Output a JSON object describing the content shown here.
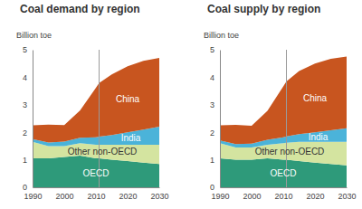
{
  "chart_data": [
    {
      "type": "area",
      "title": "Coal demand by region",
      "y_label": "Billion toe",
      "stacked": true,
      "x": [
        1990,
        1995,
        2000,
        2005,
        2010,
        2011,
        2015,
        2020,
        2025,
        2030
      ],
      "xlim": [
        1990,
        2030
      ],
      "xticks": [
        1990,
        2000,
        2010,
        2020,
        2030
      ],
      "ylim": [
        0,
        5
      ],
      "yticks": [
        0,
        1,
        2,
        3,
        4,
        5
      ],
      "vline_x": 2011,
      "series": [
        {
          "name": "OECD",
          "color": "#2e9a7a",
          "values": [
            1.05,
            1.05,
            1.1,
            1.15,
            1.05,
            1.05,
            1.0,
            0.95,
            0.9,
            0.85
          ]
        },
        {
          "name": "Other non-OECD",
          "color": "#d4e4a0",
          "values": [
            0.6,
            0.45,
            0.4,
            0.45,
            0.5,
            0.5,
            0.55,
            0.6,
            0.65,
            0.7
          ]
        },
        {
          "name": "India",
          "color": "#4bb3d9",
          "values": [
            0.1,
            0.13,
            0.16,
            0.2,
            0.27,
            0.29,
            0.35,
            0.45,
            0.55,
            0.65
          ]
        },
        {
          "name": "China",
          "color": "#c8551f",
          "values": [
            0.5,
            0.65,
            0.6,
            1.0,
            1.8,
            1.95,
            2.2,
            2.4,
            2.5,
            2.5
          ]
        }
      ]
    },
    {
      "type": "area",
      "title": "Coal supply by region",
      "y_label": "Billion toe",
      "stacked": true,
      "x": [
        1990,
        1995,
        2000,
        2005,
        2010,
        2011,
        2015,
        2020,
        2025,
        2030
      ],
      "xlim": [
        1990,
        2030
      ],
      "xticks": [
        1990,
        2000,
        2010,
        2020,
        2030
      ],
      "ylim": [
        0,
        5
      ],
      "yticks": [
        0,
        1,
        2,
        3,
        4,
        5
      ],
      "vline_x": 2011,
      "series": [
        {
          "name": "OECD",
          "color": "#2e9a7a",
          "values": [
            1.05,
            1.0,
            1.0,
            1.05,
            1.0,
            1.0,
            0.95,
            0.9,
            0.85,
            0.8
          ]
        },
        {
          "name": "Other non-OECD",
          "color": "#d4e4a0",
          "values": [
            0.55,
            0.45,
            0.45,
            0.5,
            0.6,
            0.62,
            0.7,
            0.75,
            0.8,
            0.85
          ]
        },
        {
          "name": "India",
          "color": "#4bb3d9",
          "values": [
            0.1,
            0.12,
            0.14,
            0.18,
            0.22,
            0.23,
            0.28,
            0.35,
            0.42,
            0.5
          ]
        },
        {
          "name": "China",
          "color": "#c8551f",
          "values": [
            0.55,
            0.7,
            0.65,
            1.05,
            1.85,
            2.0,
            2.3,
            2.5,
            2.6,
            2.6
          ]
        }
      ]
    }
  ]
}
